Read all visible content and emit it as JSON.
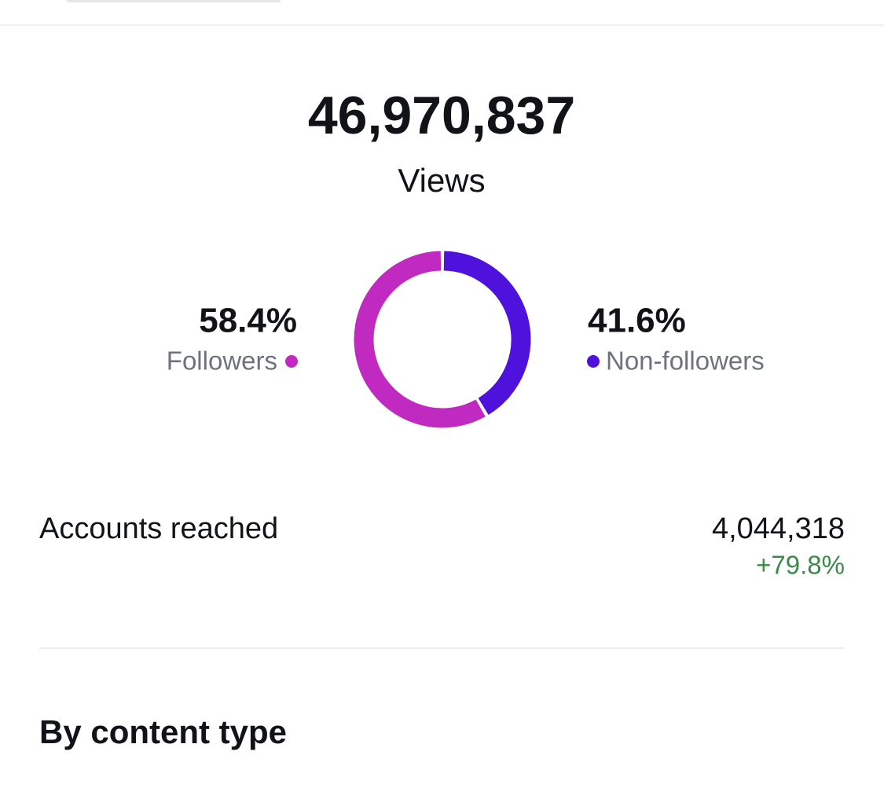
{
  "chart_data": {
    "type": "pie",
    "donut": true,
    "categories": [
      "Followers",
      "Non-followers"
    ],
    "values": [
      58.4,
      41.6
    ],
    "value_labels": [
      "58.4%",
      "41.6%"
    ],
    "colors": [
      "#c12ac1",
      "#4f12dc"
    ]
  },
  "views": {
    "value": "46,970,837",
    "label": "Views"
  },
  "accounts_reached": {
    "label": "Accounts reached",
    "value": "4,044,318",
    "change": "+79.8%"
  },
  "section_title": "By content type"
}
